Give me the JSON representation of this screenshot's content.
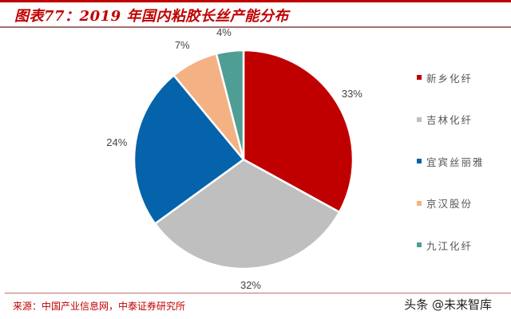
{
  "title": "图表77：2019 年国内粘胶长丝产能分布",
  "source": "来源：中国产业信息网，中泰证券研究所",
  "watermark": "头条 @未来智库",
  "chart_data": {
    "type": "pie",
    "title": "图表77：2019 年国内粘胶长丝产能分布",
    "categories": [
      "新乡化纤",
      "吉林化纤",
      "宜宾丝丽雅",
      "京汉股份",
      "九江化纤"
    ],
    "values": [
      33,
      32,
      24,
      7,
      4
    ],
    "labels": [
      "33%",
      "32%",
      "24%",
      "7%",
      "4%"
    ],
    "colors": [
      "#c00000",
      "#bfbfbf",
      "#0563ab",
      "#f4b183",
      "#4f9e95"
    ],
    "legend_position": "right",
    "start_angle": "12 o'clock, clockwise"
  },
  "legend": {
    "items": [
      {
        "label": "新乡化纤",
        "color": "#c00000"
      },
      {
        "label": "吉林化纤",
        "color": "#bfbfbf"
      },
      {
        "label": "宜宾丝丽雅",
        "color": "#0563ab"
      },
      {
        "label": "京汉股份",
        "color": "#f4b183"
      },
      {
        "label": "九江化纤",
        "color": "#4f9e95"
      }
    ]
  }
}
